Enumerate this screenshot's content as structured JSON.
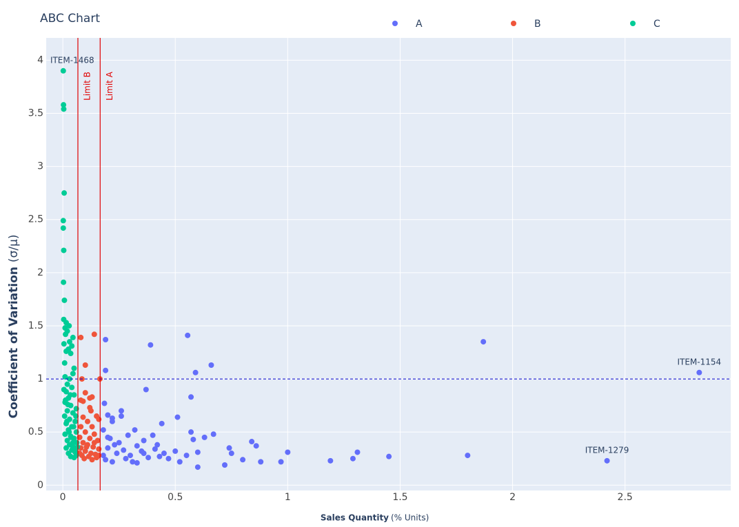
{
  "chart_data": {
    "type": "scatter",
    "title": "ABC Chart",
    "x_label": {
      "main": "Sales Quantity",
      "unit": "(% Units)"
    },
    "y_label": {
      "main": "Coefficient of Variation",
      "unit": "(σ/μ)"
    },
    "xlim": [
      -0.074,
      2.97
    ],
    "ylim": [
      -0.05,
      4.21
    ],
    "xticks": [
      0,
      0.5,
      1,
      1.5,
      2,
      2.5
    ],
    "yticks": [
      0,
      0.5,
      1,
      1.5,
      2,
      2.5,
      3,
      3.5,
      4
    ],
    "grid": true,
    "legend": "top",
    "series": [
      {
        "name": "A",
        "color": "#636efa",
        "x": [
          0.19,
          0.39,
          0.555,
          1.87,
          2.83,
          0.66,
          0.19,
          0.59,
          0.37,
          0.57,
          0.185,
          0.26,
          0.2,
          0.26,
          0.51,
          0.22,
          0.22,
          0.44,
          0.18,
          0.32,
          0.57,
          0.67,
          0.29,
          0.4,
          0.63,
          0.36,
          0.84,
          0.21,
          0.25,
          0.58,
          0.42,
          0.86,
          0.74,
          0.33,
          0.6,
          0.75,
          1.31,
          1.0,
          0.5,
          0.55,
          0.3,
          0.45,
          0.8,
          1.45,
          1.8,
          1.19,
          1.29,
          0.97,
          0.88,
          0.72,
          0.6,
          2.42,
          0.2,
          0.24,
          0.28,
          0.35,
          0.38,
          0.41,
          0.47,
          0.52,
          0.18,
          0.22,
          0.27,
          0.31,
          0.2,
          0.36,
          0.43,
          0.19,
          0.23,
          0.33
        ],
        "y": [
          1.37,
          1.32,
          1.41,
          1.35,
          1.06,
          1.13,
          1.08,
          1.06,
          0.9,
          0.83,
          0.77,
          0.7,
          0.66,
          0.65,
          0.64,
          0.6,
          0.63,
          0.58,
          0.52,
          0.52,
          0.5,
          0.48,
          0.47,
          0.47,
          0.45,
          0.42,
          0.41,
          0.44,
          0.4,
          0.43,
          0.38,
          0.37,
          0.35,
          0.37,
          0.31,
          0.3,
          0.31,
          0.31,
          0.32,
          0.28,
          0.28,
          0.3,
          0.24,
          0.27,
          0.28,
          0.23,
          0.25,
          0.22,
          0.22,
          0.19,
          0.17,
          0.23,
          0.35,
          0.3,
          0.25,
          0.32,
          0.26,
          0.34,
          0.25,
          0.22,
          0.28,
          0.22,
          0.33,
          0.22,
          0.45,
          0.3,
          0.27,
          0.24,
          0.38,
          0.21
        ]
      },
      {
        "name": "B",
        "color": "#ef553b",
        "x": [
          0.08,
          0.14,
          0.1,
          0.085,
          0.165,
          0.1,
          0.13,
          0.12,
          0.08,
          0.09,
          0.12,
          0.125,
          0.09,
          0.15,
          0.11,
          0.16,
          0.08,
          0.13,
          0.1,
          0.14,
          0.075,
          0.12,
          0.155,
          0.09,
          0.11,
          0.135,
          0.08,
          0.16,
          0.1,
          0.125,
          0.145,
          0.085,
          0.115,
          0.15,
          0.095,
          0.13,
          0.105,
          0.14,
          0.075,
          0.16
        ],
        "y": [
          1.39,
          1.42,
          1.13,
          1.0,
          1.0,
          0.87,
          0.83,
          0.82,
          0.8,
          0.79,
          0.73,
          0.7,
          0.64,
          0.65,
          0.6,
          0.62,
          0.55,
          0.55,
          0.5,
          0.48,
          0.45,
          0.44,
          0.42,
          0.4,
          0.38,
          0.36,
          0.35,
          0.34,
          0.32,
          0.3,
          0.29,
          0.28,
          0.27,
          0.26,
          0.25,
          0.24,
          0.36,
          0.4,
          0.3,
          0.28
        ]
      },
      {
        "name": "C",
        "color": "#00cc96",
        "x": [
          0.002,
          0.003,
          0.004,
          0.006,
          0.002,
          0.002,
          0.004,
          0.003,
          0.007,
          0.004,
          0.015,
          0.028,
          0.01,
          0.02,
          0.012,
          0.045,
          0.005,
          0.03,
          0.04,
          0.025,
          0.035,
          0.015,
          0.008,
          0.05,
          0.045,
          0.01,
          0.03,
          0.02,
          0.04,
          0.015,
          0.05,
          0.025,
          0.01,
          0.035,
          0.06,
          0.02,
          0.045,
          0.008,
          0.03,
          0.055,
          0.015,
          0.04,
          0.025,
          0.06,
          0.01,
          0.035,
          0.05,
          0.02,
          0.045,
          0.03,
          0.065,
          0.015,
          0.04,
          0.055,
          0.025,
          0.06,
          0.05,
          0.035,
          0.005,
          0.012,
          0.018,
          0.028,
          0.038,
          0.048,
          0.058,
          0.062,
          0.022,
          0.033,
          0.043,
          0.053
        ],
        "y": [
          3.9,
          3.58,
          3.54,
          2.75,
          2.49,
          2.42,
          2.21,
          1.91,
          1.74,
          1.56,
          1.53,
          1.5,
          1.48,
          1.45,
          1.42,
          1.39,
          1.33,
          1.35,
          1.31,
          1.28,
          1.24,
          1.26,
          1.15,
          1.1,
          1.05,
          1.02,
          1.0,
          0.95,
          0.92,
          0.88,
          0.85,
          0.82,
          0.78,
          0.75,
          0.72,
          0.7,
          0.68,
          0.65,
          0.62,
          0.6,
          0.58,
          0.55,
          0.52,
          0.5,
          0.48,
          0.46,
          0.44,
          0.42,
          0.4,
          0.38,
          0.36,
          0.35,
          0.33,
          0.31,
          0.3,
          0.28,
          0.26,
          0.27,
          0.9,
          0.8,
          0.6,
          0.5,
          0.45,
          0.55,
          0.65,
          0.4,
          0.76,
          0.85,
          0.37,
          0.33
        ]
      }
    ],
    "vlines": [
      {
        "name": "Limit B",
        "x": 0.067,
        "color": "#e00000"
      },
      {
        "name": "Limit A",
        "x": 0.166,
        "color": "#e00000"
      }
    ],
    "hline": {
      "y": 1,
      "color": "#0000cc",
      "dash": true
    },
    "annotations": [
      {
        "text": "ITEM-1468",
        "x": 0.002,
        "y": 3.9
      },
      {
        "text": "ITEM-1154",
        "x": 2.83,
        "y": 1.06
      },
      {
        "text": "ITEM-1279",
        "x": 2.42,
        "y": 0.23
      }
    ]
  }
}
